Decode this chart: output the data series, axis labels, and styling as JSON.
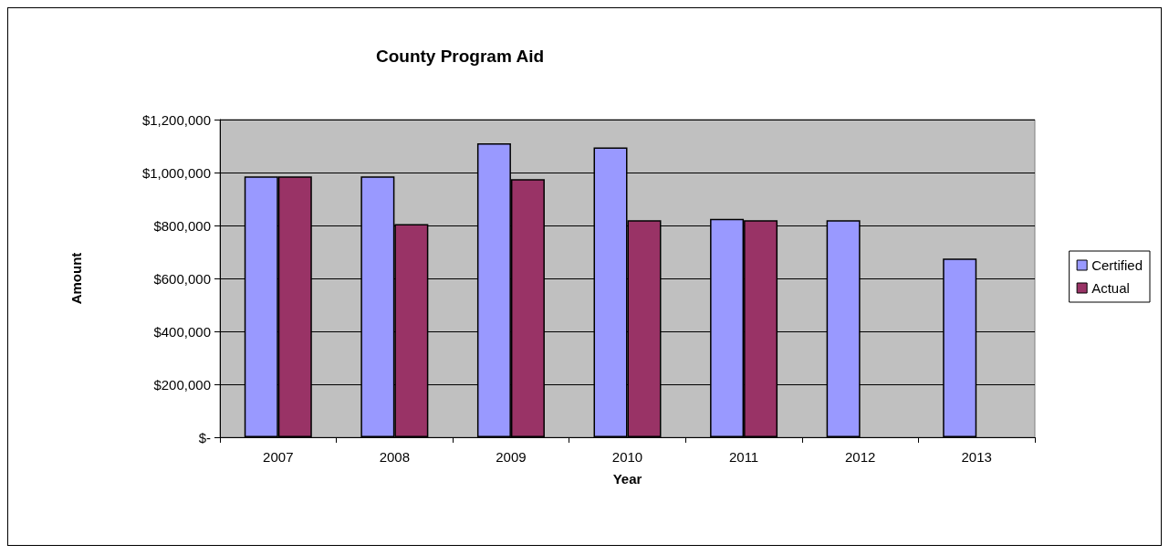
{
  "chart_data": {
    "type": "bar",
    "title": "County Program Aid",
    "xlabel": "Year",
    "ylabel": "Amount",
    "categories": [
      "2007",
      "2008",
      "2009",
      "2010",
      "2011",
      "2012",
      "2013"
    ],
    "series": [
      {
        "name": "Certified",
        "color": "#9999ff",
        "values": [
          985000,
          985000,
          1110000,
          1095000,
          825000,
          820000,
          675000
        ]
      },
      {
        "name": "Actual",
        "color": "#993366",
        "values": [
          985000,
          805000,
          975000,
          820000,
          820000,
          null,
          null
        ]
      }
    ],
    "ylim": [
      0,
      1200000
    ],
    "yticks": [
      {
        "value": 0,
        "label": "$-"
      },
      {
        "value": 200000,
        "label": "$200,000"
      },
      {
        "value": 400000,
        "label": "$400,000"
      },
      {
        "value": 600000,
        "label": "$600,000"
      },
      {
        "value": 800000,
        "label": "$800,000"
      },
      {
        "value": 1000000,
        "label": "$1,000,000"
      },
      {
        "value": 1200000,
        "label": "$1,200,000"
      }
    ],
    "grid": "y",
    "legend": "right"
  }
}
